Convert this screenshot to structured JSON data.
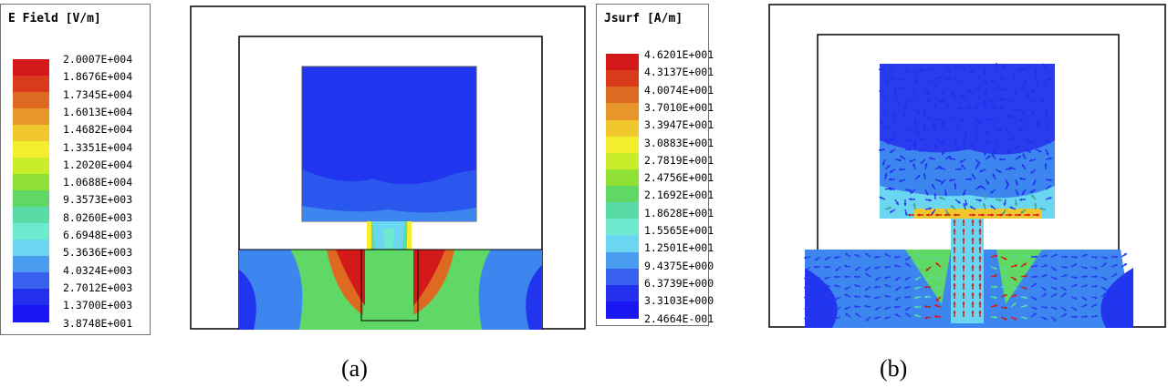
{
  "panel_a": {
    "caption": "(a)",
    "legend": {
      "title": "E Field [V/m]",
      "values": [
        "2.0007E+004",
        "1.8676E+004",
        "1.7345E+004",
        "1.6013E+004",
        "1.4682E+004",
        "1.3351E+004",
        "1.2020E+004",
        "1.0688E+004",
        "9.3573E+003",
        "8.0260E+003",
        "6.6948E+003",
        "5.3636E+003",
        "4.0324E+003",
        "2.7012E+003",
        "1.3700E+003",
        "3.8748E+001"
      ]
    }
  },
  "panel_b": {
    "caption": "(b)",
    "legend": {
      "title": "Jsurf [A/m]",
      "values": [
        "4.6201E+001",
        "4.3137E+001",
        "4.0074E+001",
        "3.7010E+001",
        "3.3947E+001",
        "3.0883E+001",
        "2.7819E+001",
        "2.4756E+001",
        "2.1692E+001",
        "1.8628E+001",
        "1.5565E+001",
        "1.2501E+001",
        "9.4375E+000",
        "6.3739E+000",
        "3.3103E+000",
        "2.4664E-001"
      ]
    }
  },
  "colorscale": [
    "#d4191b",
    "#da3a1c",
    "#de6a22",
    "#e6962a",
    "#f0c82e",
    "#f4ee2e",
    "#c9ed2b",
    "#8fe235",
    "#5fd866",
    "#58dba6",
    "#6eeace",
    "#6bd6f0",
    "#4a9cf0",
    "#3760ef",
    "#2230ee",
    "#1a16f2"
  ]
}
